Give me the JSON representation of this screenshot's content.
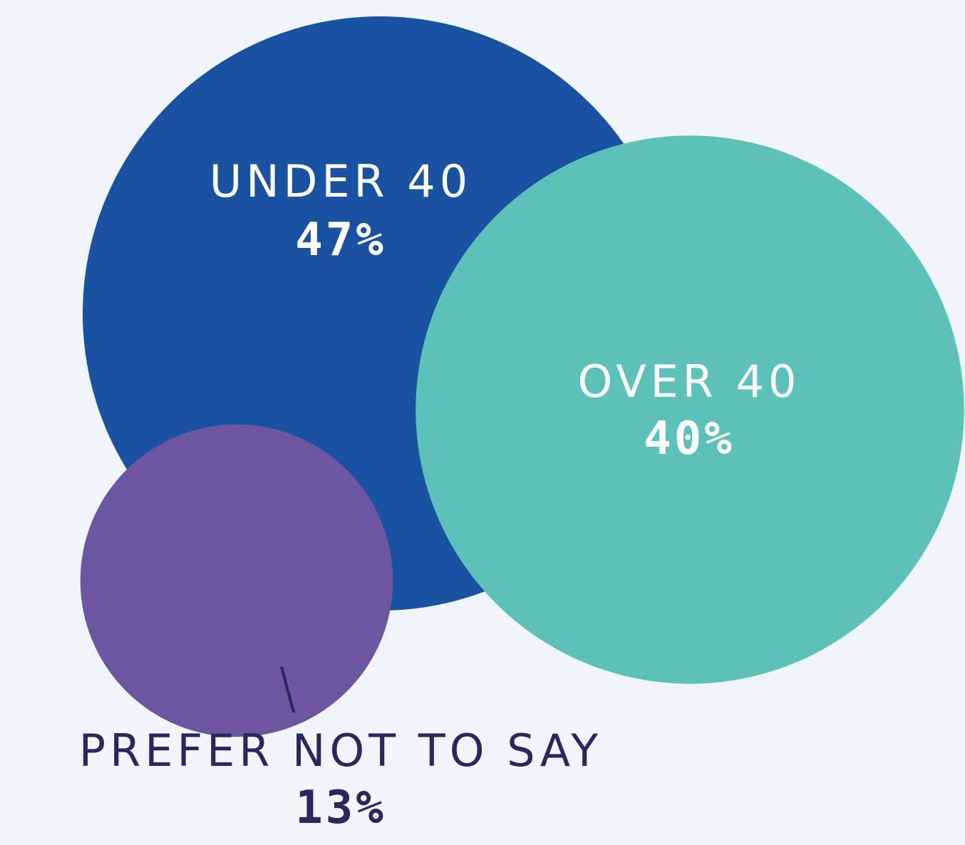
{
  "chart_data": {
    "type": "bubble",
    "unit": "%",
    "items": [
      {
        "label": "UNDER 40",
        "value": 47,
        "value_label": "47%",
        "color": "#1a52a2",
        "text_color": "#ffffff"
      },
      {
        "label": "OVER 40",
        "value": 40,
        "value_label": "40%",
        "color": "#5cc2b9",
        "text_color": "#ffffff"
      },
      {
        "label": "PREFER NOT TO SAY",
        "value": 13,
        "value_label": "13%",
        "color": "#6c55a1",
        "text_color": "#28275e"
      }
    ],
    "background": "#eff5fa"
  }
}
